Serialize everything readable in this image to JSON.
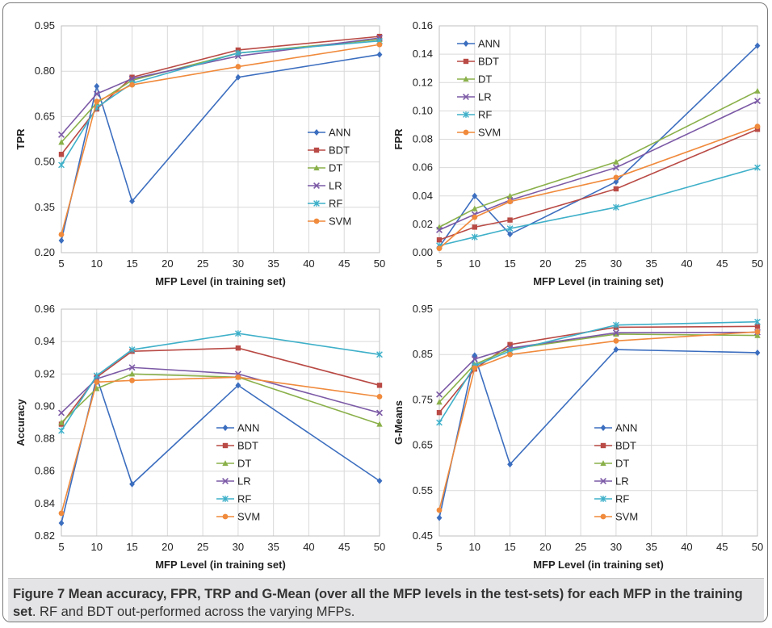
{
  "caption": {
    "figure_label": "Figure 7",
    "bold_text": "Mean accuracy, FPR, TRP and G-Mean (over all the MFP levels in the test-sets) for each MFP in the training set",
    "plain_text": ". RF and BDT out-performed across the varying MFPs."
  },
  "colors": {
    "ANN": "#3c6ebf",
    "BDT": "#b94a45",
    "DT": "#8ab04a",
    "LR": "#7c5aa6",
    "RF": "#3fb0c9",
    "SVM": "#f08a3c"
  },
  "chart_data": [
    {
      "type": "line",
      "ylabel": "TPR",
      "xlabel": "MFP Level (in training set)",
      "x": [
        5,
        10,
        15,
        30,
        50
      ],
      "xlim": [
        5,
        50
      ],
      "xticks": [
        5,
        10,
        15,
        20,
        25,
        30,
        35,
        40,
        45,
        50
      ],
      "ylim": [
        0.2,
        0.95
      ],
      "yticks": [
        "0.20",
        "0.35",
        "0.50",
        "0.65",
        "0.80",
        "0.95"
      ],
      "legend_position": "right-middle",
      "series": [
        {
          "name": "ANN",
          "marker": "diamond",
          "values": [
            0.24,
            0.75,
            0.37,
            0.78,
            0.855
          ]
        },
        {
          "name": "BDT",
          "marker": "square",
          "values": [
            0.525,
            0.675,
            0.78,
            0.87,
            0.915
          ]
        },
        {
          "name": "DT",
          "marker": "triangle",
          "values": [
            0.565,
            0.695,
            0.77,
            0.86,
            0.905
          ]
        },
        {
          "name": "LR",
          "marker": "x",
          "values": [
            0.59,
            0.725,
            0.775,
            0.85,
            0.91
          ]
        },
        {
          "name": "RF",
          "marker": "star",
          "values": [
            0.49,
            0.68,
            0.76,
            0.86,
            0.9
          ]
        },
        {
          "name": "SVM",
          "marker": "circle",
          "values": [
            0.26,
            0.7,
            0.755,
            0.815,
            0.888
          ]
        }
      ]
    },
    {
      "type": "line",
      "ylabel": "FPR",
      "xlabel": "MFP Level (in training set)",
      "x": [
        5,
        10,
        15,
        30,
        50
      ],
      "xlim": [
        5,
        50
      ],
      "xticks": [
        5,
        10,
        15,
        20,
        25,
        30,
        35,
        40,
        45,
        50
      ],
      "ylim": [
        0.0,
        0.16
      ],
      "yticks": [
        "0.00",
        "0.02",
        "0.04",
        "0.06",
        "0.08",
        "0.10",
        "0.12",
        "0.14",
        "0.16"
      ],
      "legend_position": "top-left",
      "series": [
        {
          "name": "ANN",
          "marker": "diamond",
          "values": [
            0.004,
            0.04,
            0.013,
            0.05,
            0.146
          ]
        },
        {
          "name": "BDT",
          "marker": "square",
          "values": [
            0.009,
            0.018,
            0.023,
            0.045,
            0.087
          ]
        },
        {
          "name": "DT",
          "marker": "triangle",
          "values": [
            0.018,
            0.031,
            0.04,
            0.064,
            0.114
          ]
        },
        {
          "name": "LR",
          "marker": "x",
          "values": [
            0.016,
            0.027,
            0.037,
            0.06,
            0.107
          ]
        },
        {
          "name": "RF",
          "marker": "star",
          "values": [
            0.005,
            0.011,
            0.017,
            0.032,
            0.06
          ]
        },
        {
          "name": "SVM",
          "marker": "circle",
          "values": [
            0.003,
            0.025,
            0.036,
            0.053,
            0.089
          ]
        }
      ]
    },
    {
      "type": "line",
      "ylabel": "Accuracy",
      "xlabel": "MFP Level (in training set)",
      "x": [
        5,
        10,
        15,
        30,
        50
      ],
      "xlim": [
        5,
        50
      ],
      "xticks": [
        5,
        10,
        15,
        20,
        25,
        30,
        35,
        40,
        45,
        50
      ],
      "ylim": [
        0.82,
        0.96
      ],
      "yticks": [
        "0.82",
        "0.84",
        "0.86",
        "0.88",
        "0.90",
        "0.92",
        "0.94",
        "0.96"
      ],
      "legend_position": "bottom-middle",
      "series": [
        {
          "name": "ANN",
          "marker": "diamond",
          "values": [
            0.828,
            0.918,
            0.852,
            0.913,
            0.854
          ]
        },
        {
          "name": "BDT",
          "marker": "square",
          "values": [
            0.889,
            0.918,
            0.934,
            0.936,
            0.913
          ]
        },
        {
          "name": "DT",
          "marker": "triangle",
          "values": [
            0.89,
            0.911,
            0.92,
            0.918,
            0.889
          ]
        },
        {
          "name": "LR",
          "marker": "x",
          "values": [
            0.896,
            0.917,
            0.924,
            0.92,
            0.896
          ]
        },
        {
          "name": "RF",
          "marker": "star",
          "values": [
            0.885,
            0.919,
            0.935,
            0.945,
            0.932
          ]
        },
        {
          "name": "SVM",
          "marker": "circle",
          "values": [
            0.834,
            0.915,
            0.916,
            0.918,
            0.906
          ]
        }
      ]
    },
    {
      "type": "line",
      "ylabel": "G-Means",
      "xlabel": "MFP Level (in training set)",
      "x": [
        5,
        10,
        15,
        30,
        50
      ],
      "xlim": [
        5,
        50
      ],
      "xticks": [
        5,
        10,
        15,
        20,
        25,
        30,
        35,
        40,
        45,
        50
      ],
      "ylim": [
        0.45,
        0.95
      ],
      "yticks": [
        "0.45",
        "0.55",
        "0.65",
        "0.75",
        "0.85",
        "0.95"
      ],
      "legend_position": "bottom-middle",
      "series": [
        {
          "name": "ANN",
          "marker": "diamond",
          "values": [
            0.49,
            0.848,
            0.608,
            0.861,
            0.854
          ]
        },
        {
          "name": "BDT",
          "marker": "square",
          "values": [
            0.722,
            0.818,
            0.872,
            0.91,
            0.912
          ]
        },
        {
          "name": "DT",
          "marker": "triangle",
          "values": [
            0.745,
            0.828,
            0.862,
            0.895,
            0.892
          ]
        },
        {
          "name": "LR",
          "marker": "x",
          "values": [
            0.762,
            0.84,
            0.864,
            0.898,
            0.899
          ]
        },
        {
          "name": "RF",
          "marker": "star",
          "values": [
            0.7,
            0.825,
            0.858,
            0.915,
            0.922
          ]
        },
        {
          "name": "SVM",
          "marker": "circle",
          "values": [
            0.507,
            0.82,
            0.85,
            0.88,
            0.9
          ]
        }
      ]
    }
  ]
}
